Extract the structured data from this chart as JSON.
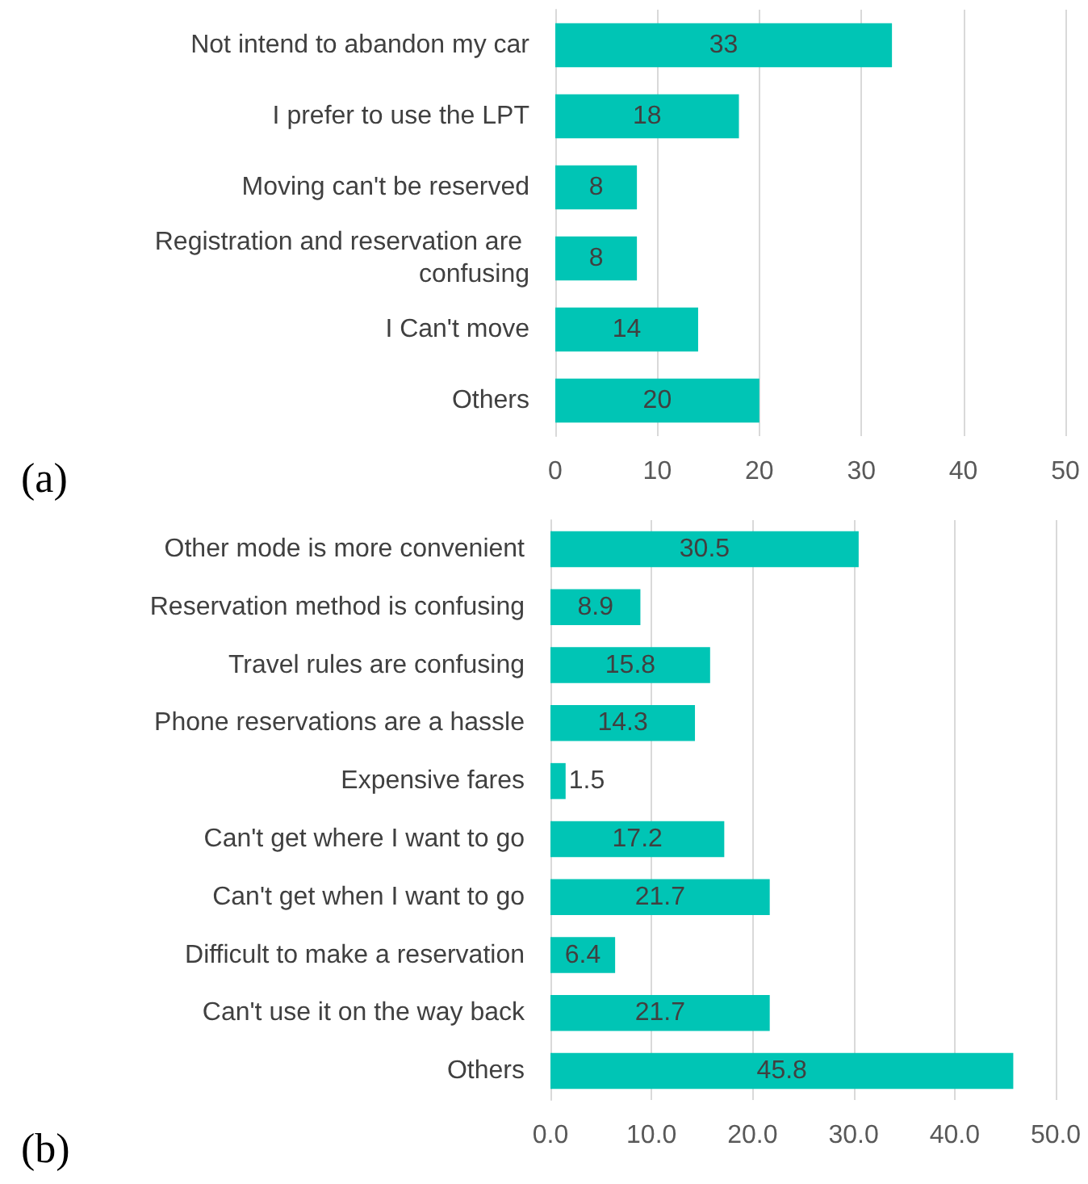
{
  "chart_data": [
    {
      "type": "bar",
      "orientation": "horizontal",
      "title": "(a)",
      "categories": [
        "Not intend to abandon my car",
        "I prefer to use the LPT",
        "Moving can't be reserved",
        "Registration and reservation are confusing",
        "I Can't move",
        "Others"
      ],
      "values": [
        33,
        18,
        8,
        8,
        14,
        20
      ],
      "color": "#00c5b5",
      "xlim": [
        0,
        50
      ],
      "xticks": [
        0,
        10,
        20,
        30,
        40,
        50
      ],
      "grid": "x",
      "data_labels": true
    },
    {
      "type": "bar",
      "orientation": "horizontal",
      "title": "(b)",
      "categories": [
        "Other mode is more convenient",
        "Reservation method is confusing",
        "Travel rules are confusing",
        "Phone reservations are a hassle",
        "Expensive fares",
        "Can't get where I want to go",
        "Can't get when I want to go",
        "Difficult to make a reservation",
        "Can't use it on the way back",
        "Others"
      ],
      "values": [
        30.5,
        8.9,
        15.8,
        14.3,
        1.5,
        17.2,
        21.7,
        6.4,
        21.7,
        45.8
      ],
      "color": "#00c5b5",
      "xlim": [
        0,
        50
      ],
      "xticks": [
        {
          "value": 0,
          "label": "0.0"
        },
        {
          "value": 10,
          "label": "10.0"
        },
        {
          "value": 20,
          "label": "20.0"
        },
        {
          "value": 30,
          "label": "30.0"
        },
        {
          "value": 40,
          "label": "40.0"
        },
        {
          "value": 50,
          "label": "50.0"
        }
      ],
      "grid": "x",
      "data_labels": true
    }
  ]
}
